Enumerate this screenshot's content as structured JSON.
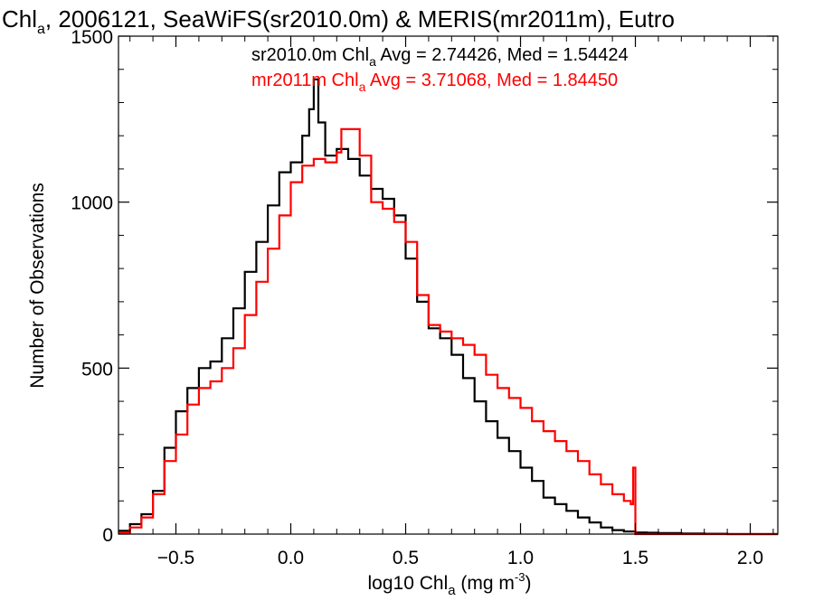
{
  "title": {
    "text": "Chl",
    "sub": "a",
    "rest": ", 2006121, SeaWiFS(sr2010.0m) & MERIS(mr2011m), Eutro"
  },
  "axes": {
    "xlabel": {
      "pre": "log10 Chl",
      "sub": "a",
      "mid": " (mg m",
      "sup": "-3",
      "post": ")"
    },
    "ylabel": "Number of Observations"
  },
  "legend": [
    {
      "pre": "sr2010.0m Chl",
      "sub": "a",
      "post": " Avg = 2.74426, Med = 1.54424",
      "color": "#000000"
    },
    {
      "pre": "mr2011m Chl",
      "sub": "a",
      "post": " Avg = 3.71068, Med = 1.84450",
      "color": "#ff0000"
    }
  ],
  "chart_data": {
    "type": "line",
    "step": true,
    "title": "Chla, 2006121, SeaWiFS(sr2010.0m) & MERIS(mr2011m), Eutro",
    "xlabel": "log10 Chla (mg m-3)",
    "ylabel": "Number of Observations",
    "xlim": [
      -0.75,
      2.12
    ],
    "ylim": [
      0,
      1500
    ],
    "xticks": [
      -0.5,
      0.0,
      0.5,
      1.0,
      1.5,
      2.0
    ],
    "xtick_labels": [
      "−0.5",
      "0.0",
      "0.5",
      "1.0",
      "1.5",
      "2.0"
    ],
    "yticks": [
      0,
      500,
      1000,
      1500
    ],
    "ytick_labels": [
      "0",
      "500",
      "1000",
      "1500"
    ],
    "grid": false,
    "legend_position": "top-center",
    "series": [
      {
        "name": "sr2010.0m Chla Avg = 2.74426, Med = 1.54424",
        "color": "#000000",
        "x": [
          -0.75,
          -0.7,
          -0.65,
          -0.6,
          -0.55,
          -0.5,
          -0.45,
          -0.4,
          -0.35,
          -0.3,
          -0.25,
          -0.2,
          -0.15,
          -0.1,
          -0.05,
          0.0,
          0.05,
          0.08,
          0.1,
          0.12,
          0.15,
          0.2,
          0.25,
          0.3,
          0.35,
          0.4,
          0.45,
          0.5,
          0.55,
          0.6,
          0.65,
          0.7,
          0.75,
          0.8,
          0.85,
          0.9,
          0.95,
          1.0,
          1.05,
          1.1,
          1.15,
          1.2,
          1.25,
          1.3,
          1.35,
          1.4,
          1.45,
          1.5,
          1.55,
          1.6,
          1.7,
          1.8,
          1.9,
          2.0,
          2.12
        ],
        "y": [
          10,
          30,
          60,
          130,
          260,
          370,
          440,
          500,
          520,
          590,
          680,
          790,
          880,
          990,
          1090,
          1120,
          1200,
          1280,
          1370,
          1240,
          1140,
          1160,
          1130,
          1080,
          1040,
          1010,
          960,
          830,
          700,
          620,
          590,
          540,
          470,
          400,
          340,
          290,
          250,
          200,
          160,
          110,
          90,
          70,
          50,
          35,
          20,
          12,
          8,
          5,
          4,
          3,
          2,
          1,
          0,
          0,
          0
        ]
      },
      {
        "name": "mr2011m Chla Avg = 3.71068, Med = 1.84450",
        "color": "#ff0000",
        "x": [
          -0.75,
          -0.7,
          -0.65,
          -0.6,
          -0.55,
          -0.5,
          -0.45,
          -0.4,
          -0.35,
          -0.3,
          -0.25,
          -0.2,
          -0.15,
          -0.1,
          -0.05,
          0.0,
          0.05,
          0.1,
          0.15,
          0.2,
          0.22,
          0.25,
          0.3,
          0.35,
          0.4,
          0.45,
          0.5,
          0.55,
          0.6,
          0.65,
          0.7,
          0.75,
          0.8,
          0.85,
          0.9,
          0.95,
          1.0,
          1.05,
          1.1,
          1.15,
          1.2,
          1.25,
          1.3,
          1.35,
          1.4,
          1.45,
          1.48,
          1.49,
          1.5,
          1.6,
          1.7,
          1.8,
          1.9,
          2.0,
          2.12
        ],
        "y": [
          5,
          20,
          50,
          120,
          220,
          300,
          390,
          440,
          460,
          500,
          560,
          660,
          760,
          860,
          960,
          1060,
          1110,
          1130,
          1120,
          1150,
          1220,
          1220,
          1140,
          1000,
          980,
          940,
          880,
          720,
          630,
          610,
          590,
          570,
          540,
          480,
          440,
          410,
          380,
          340,
          310,
          280,
          250,
          220,
          180,
          150,
          120,
          100,
          90,
          200,
          0,
          0,
          0,
          0,
          0,
          0,
          0
        ]
      }
    ]
  }
}
